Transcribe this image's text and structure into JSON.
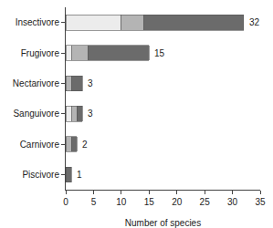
{
  "chart_data": {
    "type": "bar",
    "orientation": "horizontal",
    "stacked": true,
    "categories": [
      "Insectivore",
      "Frugivore",
      "Nectarivore",
      "Sanguivore",
      "Carnivore",
      "Piscivore"
    ],
    "series": [
      {
        "color": "#ececec",
        "values": [
          10,
          1,
          0,
          1,
          0,
          0
        ]
      },
      {
        "color": "#b4b4b4",
        "values": [
          4,
          3,
          1,
          1,
          1,
          0
        ]
      },
      {
        "color": "#6b6b6b",
        "values": [
          18,
          11,
          2,
          1,
          1,
          1
        ]
      }
    ],
    "totals": [
      32,
      15,
      3,
      3,
      2,
      1
    ],
    "x_label": "Number of species",
    "xlim": [
      0,
      35
    ],
    "xticks": [
      0,
      5,
      10,
      15,
      20,
      25,
      30,
      35
    ],
    "grid": false
  }
}
